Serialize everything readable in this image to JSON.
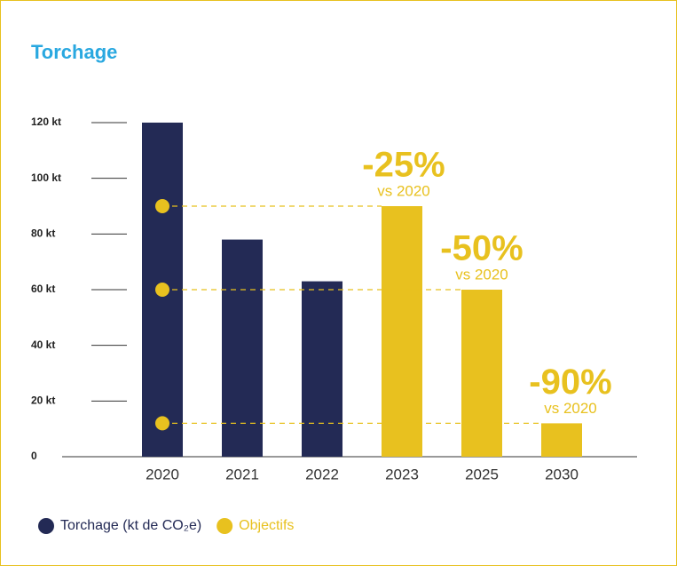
{
  "chart_data": {
    "type": "bar",
    "title": "Torchage",
    "categories": [
      "2020",
      "2021",
      "2022",
      "2023",
      "2025",
      "2030"
    ],
    "series": [
      {
        "name": "Torchage (kt de CO₂e)",
        "color": "#232a55",
        "values": [
          120,
          78,
          63,
          null,
          null,
          null
        ]
      },
      {
        "name": "Objectifs",
        "color": "#e8c11f",
        "values": [
          null,
          null,
          null,
          90,
          60,
          12
        ]
      }
    ],
    "annotations": [
      {
        "text": "-25%",
        "note": "vs 2020"
      },
      {
        "text": "-50%",
        "note": "vs 2020"
      },
      {
        "text": "-90%",
        "note": "vs 2020"
      }
    ],
    "ylim": [
      0,
      120
    ],
    "yticks": [
      0,
      {
        "value": 20,
        "label": "20 kt"
      },
      {
        "value": 40,
        "label": "40 kt"
      },
      {
        "value": 60,
        "label": "60 kt"
      },
      {
        "value": 80,
        "label": "80 kt"
      },
      {
        "value": 100,
        "label": "100 kt"
      },
      {
        "value": 120,
        "label": "120 kt"
      }
    ]
  }
}
